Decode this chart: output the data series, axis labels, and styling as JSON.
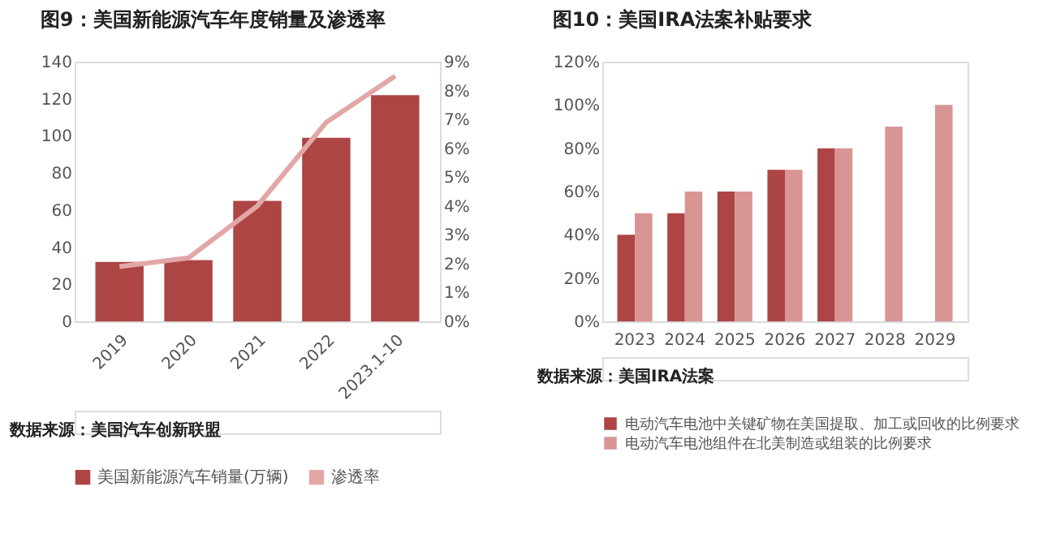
{
  "chart_data": [
    {
      "type": "bar",
      "title": "图9：美国新能源汽车年度销量及渗透率",
      "categories": [
        "2019",
        "2020",
        "2021",
        "2022",
        "2023.1-10"
      ],
      "series": [
        {
          "name": "美国新能源汽车销量(万辆)",
          "color": "#ad4545",
          "values": [
            32,
            33,
            65,
            99,
            122
          ]
        },
        {
          "name": "渗透率",
          "type": "line",
          "axis": "y2",
          "color": "#e3a6a6",
          "values": [
            1.9,
            2.2,
            4.0,
            6.9,
            8.5
          ]
        }
      ],
      "ylim": [
        0,
        140
      ],
      "yticks": [
        0,
        20,
        40,
        60,
        80,
        100,
        120,
        140
      ],
      "y2lim": [
        0,
        9
      ],
      "y2ticks": [
        {
          "value": 0,
          "label": "0%"
        },
        {
          "value": 1,
          "label": "1%"
        },
        {
          "value": 2,
          "label": "2%"
        },
        {
          "value": 3,
          "label": "3%"
        },
        {
          "value": 4,
          "label": "4%"
        },
        {
          "value": 5,
          "label": "5%"
        },
        {
          "value": 6,
          "label": "6%"
        },
        {
          "value": 7,
          "label": "7%"
        },
        {
          "value": 8,
          "label": "8%"
        },
        {
          "value": 9,
          "label": "9%"
        }
      ],
      "grid": false,
      "legend": "bottom",
      "marker": "none",
      "line_style": "solid",
      "annotations": [
        "数据来源：美国汽车创新联盟"
      ]
    },
    {
      "type": "bar",
      "title": "图10：美国IRA法案补贴要求",
      "categories": [
        "2023",
        "2024",
        "2025",
        "2026",
        "2027",
        "2028",
        "2029"
      ],
      "series": [
        {
          "name": "电动汽车电池中关键矿物在美国提取、加工或回收的比例要求",
          "color": "#ad4545",
          "values": [
            40,
            50,
            60,
            70,
            80,
            null,
            null
          ]
        },
        {
          "name": "电动汽车电池组件在北美制造或组装的比例要求",
          "color": "#d99494",
          "values": [
            50,
            60,
            60,
            70,
            80,
            90,
            100
          ]
        }
      ],
      "ylim": [
        0,
        120
      ],
      "yticks": [
        {
          "value": 0,
          "label": "0%"
        },
        {
          "value": 20,
          "label": "20%"
        },
        {
          "value": 40,
          "label": "40%"
        },
        {
          "value": 60,
          "label": "60%"
        },
        {
          "value": 80,
          "label": "80%"
        },
        {
          "value": 100,
          "label": "100%"
        },
        {
          "value": 120,
          "label": "120%"
        }
      ],
      "grid": false,
      "legend": "bottom",
      "annotations": [
        "数据来源：美国IRA法案"
      ]
    }
  ]
}
